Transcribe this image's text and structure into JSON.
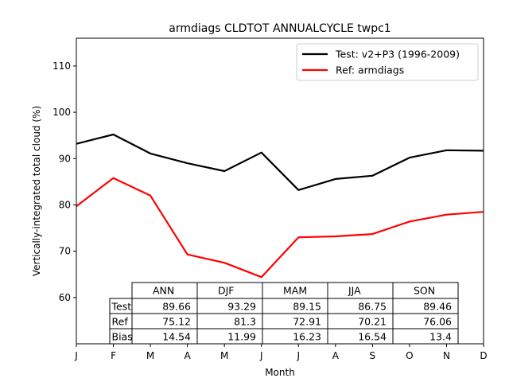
{
  "chart_data": {
    "type": "line",
    "title": "armdiags CLDTOT ANNUALCYCLE twpc1",
    "xlabel": "Month",
    "ylabel": "Vertically-integrated total cloud (%)",
    "x": [
      "J",
      "F",
      "M",
      "A",
      "M",
      "J",
      "J",
      "A",
      "S",
      "O",
      "N",
      "D"
    ],
    "ylim": [
      50,
      116
    ],
    "yticks": [
      60,
      70,
      80,
      90,
      100,
      110
    ],
    "grid": false,
    "legend_position": "upper-right",
    "series": [
      {
        "name": "Test: v2+P3 (1996-2009)",
        "color": "#000000",
        "values": [
          93.2,
          95.2,
          91.1,
          89.0,
          87.3,
          91.3,
          83.2,
          85.6,
          86.3,
          90.2,
          91.8,
          91.7
        ]
      },
      {
        "name": "Ref: armdiags",
        "color": "#ff0000",
        "values": [
          79.7,
          85.8,
          82.0,
          69.3,
          67.5,
          64.4,
          73.0,
          73.2,
          73.7,
          76.4,
          77.9,
          78.5
        ]
      }
    ],
    "table": {
      "columns": [
        "ANN",
        "DJF",
        "MAM",
        "JJA",
        "SON"
      ],
      "rows": [
        {
          "label": "Test",
          "values": [
            "89.66",
            "93.29",
            "89.15",
            "86.75",
            "89.46"
          ]
        },
        {
          "label": "Ref",
          "values": [
            "75.12",
            "81.3",
            "72.91",
            "70.21",
            "76.06"
          ]
        },
        {
          "label": "Bias",
          "values": [
            "14.54",
            "11.99",
            "16.23",
            "16.54",
            "13.4"
          ]
        }
      ]
    }
  }
}
